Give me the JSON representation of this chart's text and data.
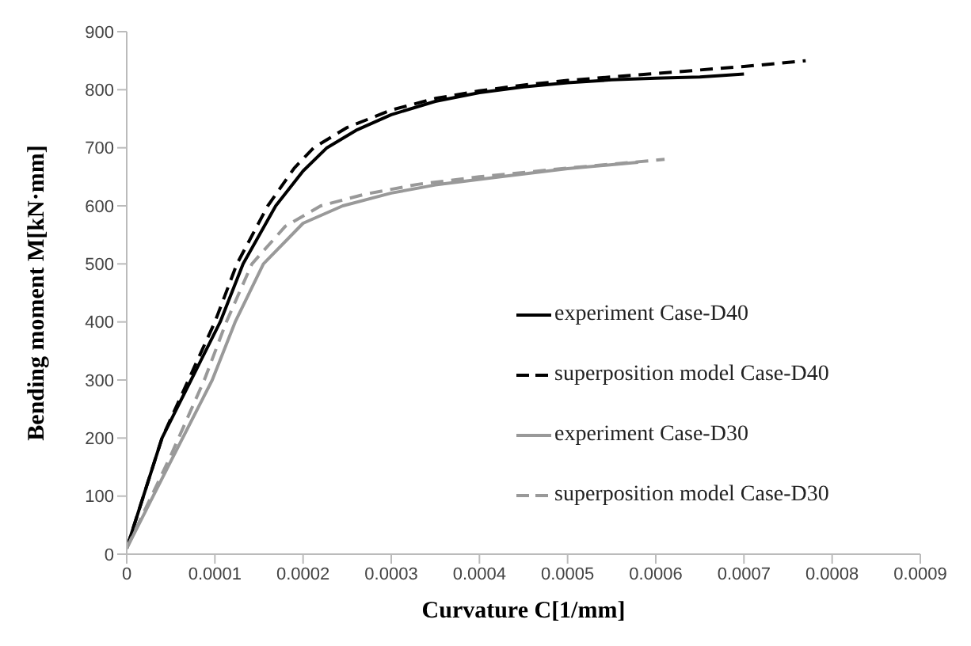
{
  "chart_data": {
    "type": "line",
    "xlabel": "Curvature C[1/mm]",
    "ylabel": "Bending moment M[kN·mm]",
    "xlim": [
      0,
      0.0009
    ],
    "ylim": [
      0,
      900
    ],
    "xticks": [
      0,
      0.0001,
      0.0002,
      0.0003,
      0.0004,
      0.0005,
      0.0006,
      0.0007,
      0.0008,
      0.0009
    ],
    "yticks": [
      0,
      100,
      200,
      300,
      400,
      500,
      600,
      700,
      800,
      900
    ],
    "grid": false,
    "legend": "right",
    "marker": "none",
    "series": [
      {
        "name": "experiment Case-D40",
        "color": "#000000",
        "line_style": "solid",
        "x": [
          0,
          4e-05,
          7.3e-05,
          0.000106,
          0.000132,
          0.000169,
          0.0002,
          0.000227,
          0.00026,
          0.0003,
          0.00035,
          0.0004,
          0.00045,
          0.0005,
          0.00055,
          0.0006,
          0.00065,
          0.0007
        ],
        "values": [
          10,
          200,
          300,
          400,
          500,
          600,
          660,
          700,
          730,
          757,
          780,
          795,
          805,
          812,
          817,
          820,
          822,
          827
        ]
      },
      {
        "name": "superposition model Case-D40",
        "color": "#000000",
        "line_style": "dashed",
        "x": [
          0,
          4e-05,
          7e-05,
          0.0001,
          0.000125,
          0.00016,
          0.00019,
          0.000212,
          0.00025,
          0.0003,
          0.00035,
          0.0004,
          0.00045,
          0.0005,
          0.0006,
          0.0007,
          0.00077
        ],
        "values": [
          10,
          200,
          300,
          400,
          500,
          600,
          665,
          700,
          735,
          765,
          785,
          798,
          808,
          816,
          828,
          840,
          850
        ]
      },
      {
        "name": "experiment Case-D30",
        "color": "#999999",
        "line_style": "solid",
        "x": [
          0,
          5e-05,
          9.7e-05,
          0.000123,
          0.000155,
          0.0002,
          0.000245,
          0.0003,
          0.00035,
          0.000424,
          0.0005,
          0.00058
        ],
        "values": [
          10,
          160,
          300,
          400,
          500,
          570,
          600,
          622,
          636,
          650,
          664,
          675
        ]
      },
      {
        "name": "superposition model Case-D30",
        "color": "#999999",
        "line_style": "dashed",
        "x": [
          0,
          5e-05,
          8.8e-05,
          0.000113,
          0.000142,
          0.00018,
          0.00022,
          0.00027,
          0.00033,
          0.0004,
          0.0005,
          0.00061
        ],
        "values": [
          10,
          170,
          300,
          400,
          500,
          565,
          600,
          620,
          637,
          650,
          665,
          680
        ]
      }
    ]
  }
}
